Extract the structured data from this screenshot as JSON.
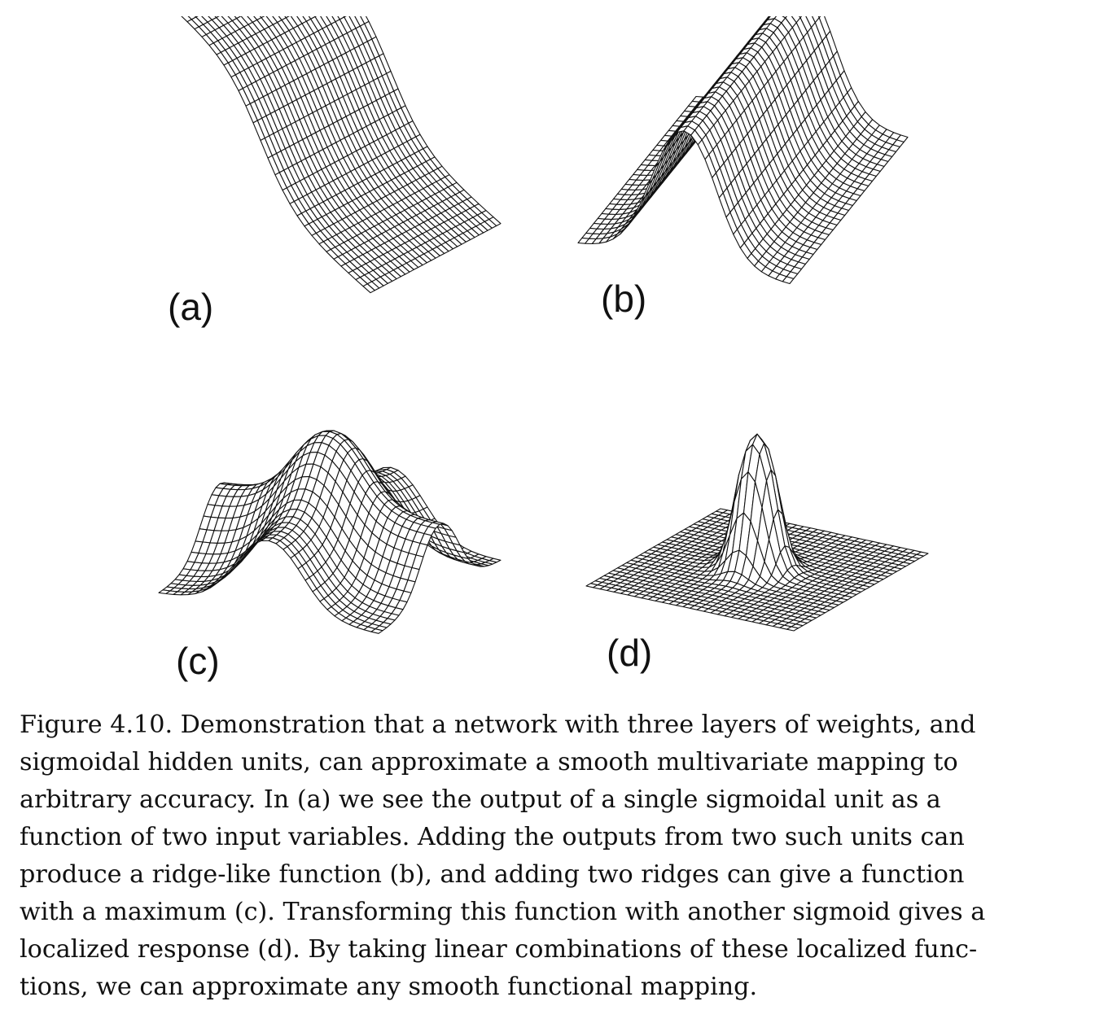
{
  "figure": {
    "panels": [
      {
        "id": "a",
        "label": "(a)",
        "surface": "single-sigmoid"
      },
      {
        "id": "b",
        "label": "(b)",
        "surface": "ridge"
      },
      {
        "id": "c",
        "label": "(c)",
        "surface": "two-ridges-maximum"
      },
      {
        "id": "d",
        "label": "(d)",
        "surface": "localized-bump"
      }
    ],
    "caption_lines": [
      "Figure 4.10. Demonstration that a network with three layers of weights, and",
      "sigmoidal hidden units, can approximate a smooth multivariate mapping to",
      "arbitrary accuracy. In (a) we see the output of a single sigmoidal unit as a",
      "function of two input variables. Adding the outputs from two such units can",
      "produce a ridge-like function (b), and adding two ridges can give a function",
      "with a maximum (c). Transforming this function with another sigmoid gives a",
      "localized response (d). By taking linear combinations of these localized func-",
      "tions, we can approximate any smooth functional mapping."
    ]
  }
}
